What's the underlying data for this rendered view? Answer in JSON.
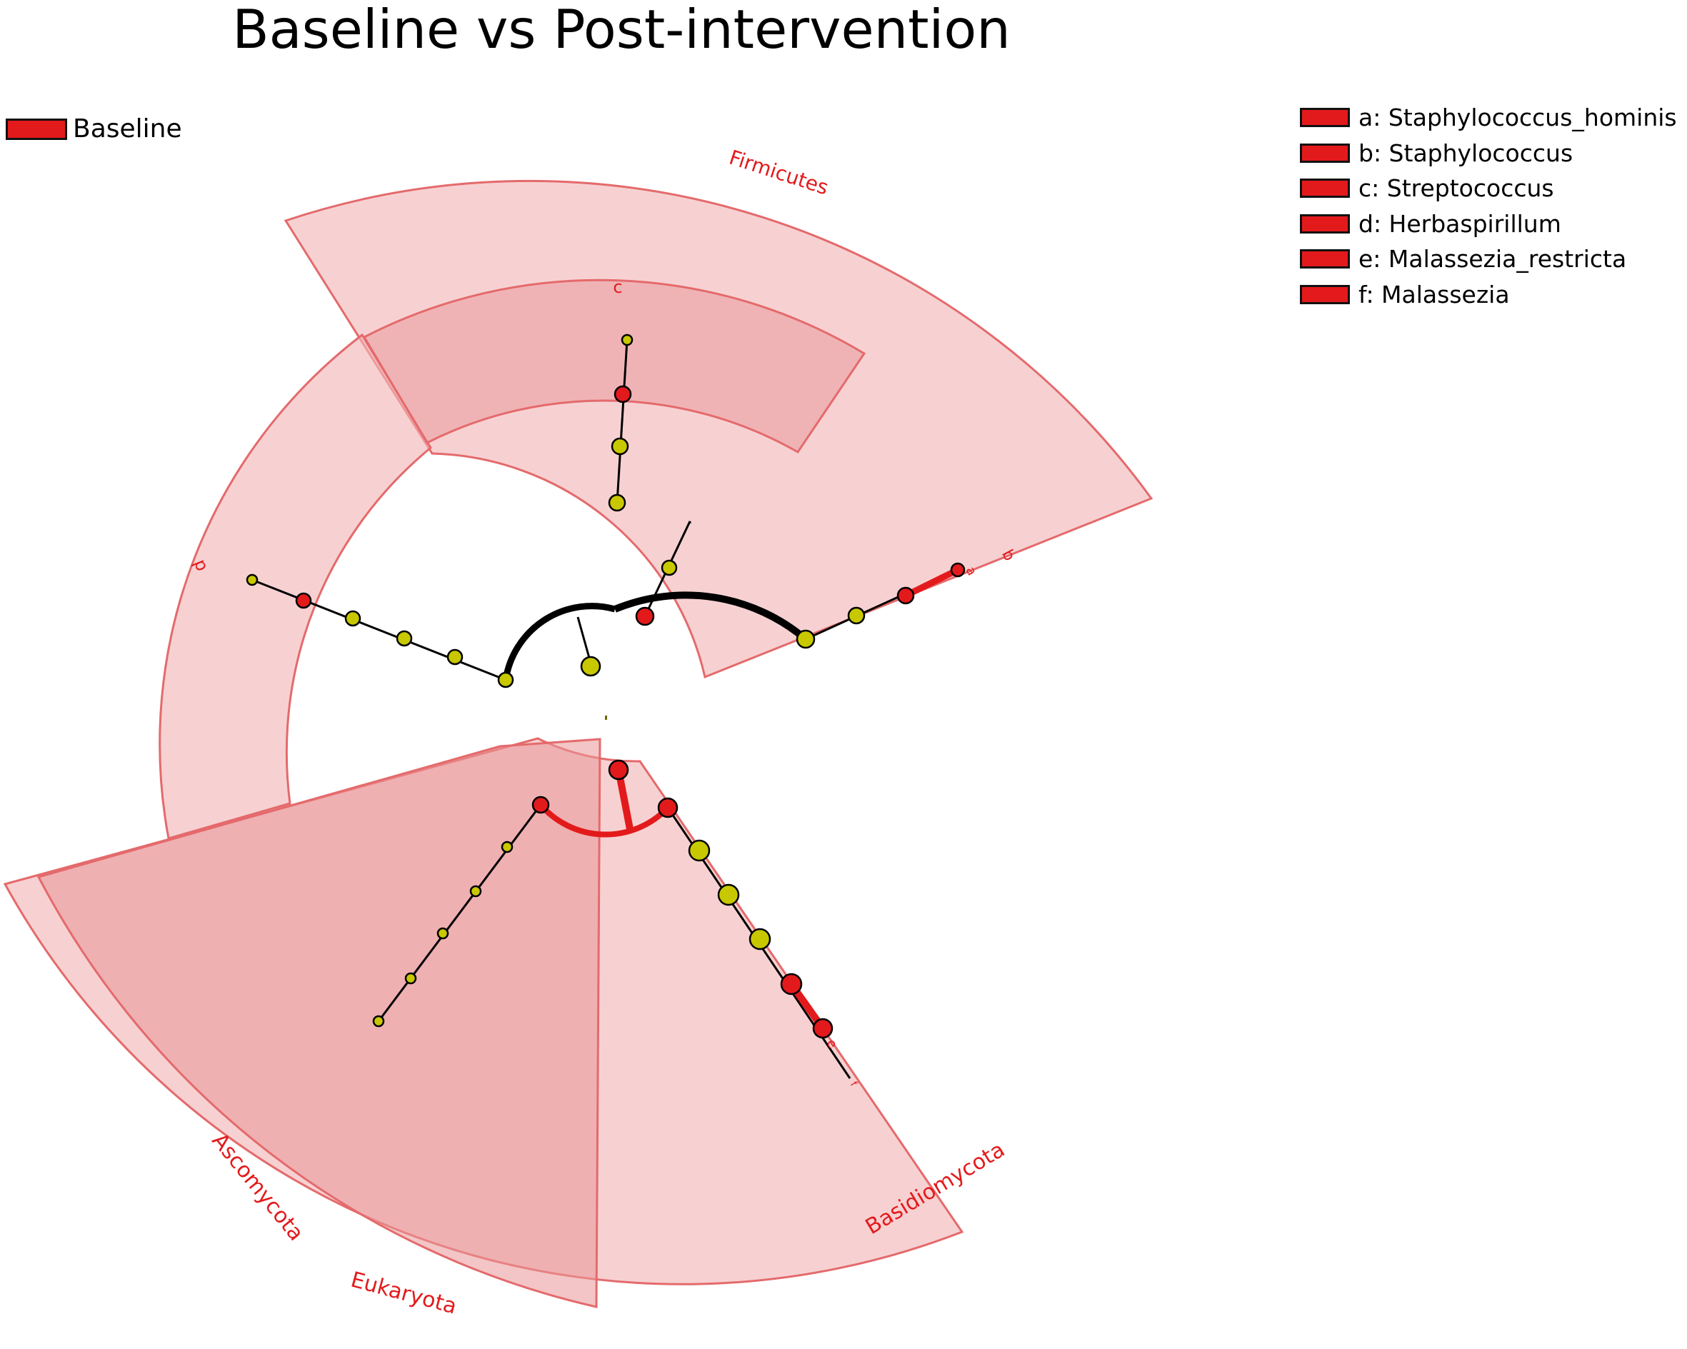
{
  "title": "Baseline vs Post-intervention",
  "class_legend": [
    {
      "label": "Baseline",
      "color": "#e31a1c"
    }
  ],
  "key_legend": [
    {
      "label": "a: Staphylococcus_hominis"
    },
    {
      "label": "b: Staphylococcus"
    },
    {
      "label": "c: Streptococcus"
    },
    {
      "label": "d: Herbaspirillum"
    },
    {
      "label": "e: Malassezia_restricta"
    },
    {
      "label": "f: Malassezia"
    }
  ],
  "colors": {
    "enriched": "#e31a1c",
    "non_significant": "#c8c800",
    "shade": "#f2b5b7",
    "shade_dark": "#e99597",
    "edge": "#000000"
  },
  "clade_labels": {
    "firmicutes": "Firmicutes",
    "c": "c",
    "d": "d",
    "b": "b",
    "a": "a",
    "ascomycota": "Ascomycota",
    "eukaryota": "Eukaryota",
    "basidiomycota": "Basidiomycota",
    "e": "e",
    "f": "f"
  }
}
